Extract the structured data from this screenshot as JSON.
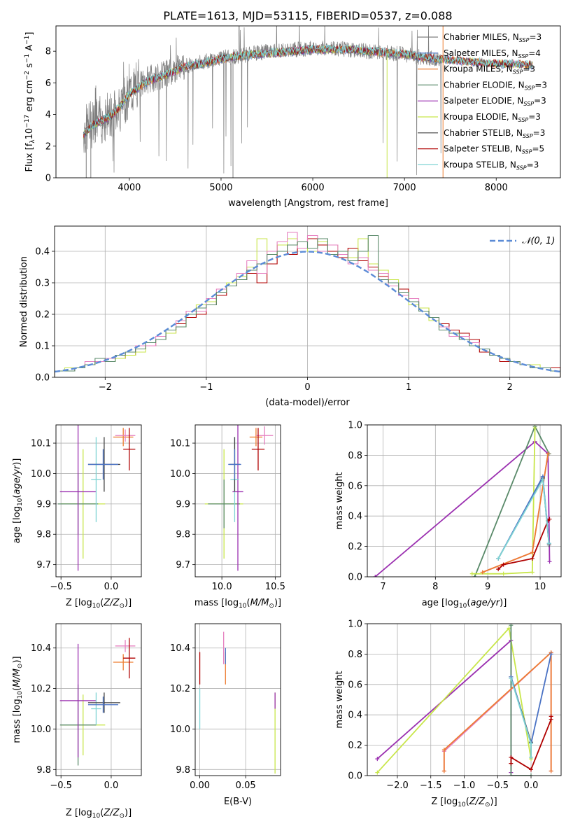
{
  "figure_title": "PLATE=1613, MJD=53115, FIBERID=0537, z=0.088",
  "model_legend": [
    {
      "label": "Chabrier MILES, N",
      "sub": "SSP",
      "suffix": "=3",
      "color": "#7f7f7f"
    },
    {
      "label": "Salpeter MILES, N",
      "sub": "SSP",
      "suffix": "=4",
      "color": "#4a72c4"
    },
    {
      "label": "Kroupa MILES, N",
      "sub": "SSP",
      "suffix": "=3",
      "color": "#ed7d31"
    },
    {
      "label": "Chabrier ELODIE, N",
      "sub": "SSP",
      "suffix": "=3",
      "color": "#5a8a6a"
    },
    {
      "label": "Salpeter ELODIE, N",
      "sub": "SSP",
      "suffix": "=3",
      "color": "#9b30b0"
    },
    {
      "label": "Kroupa ELODIE, N",
      "sub": "SSP",
      "suffix": "=3",
      "color": "#c8e64a"
    },
    {
      "label": "Chabrier STELIB, N",
      "sub": "SSP",
      "suffix": "=3",
      "color": "#404040"
    },
    {
      "label": "Salpeter STELIB, N",
      "sub": "SSP",
      "suffix": "=5",
      "color": "#b00000"
    },
    {
      "label": "Kroupa STELIB, N",
      "sub": "SSP",
      "suffix": "=3",
      "color": "#7fd4d4"
    }
  ],
  "chart_data": [
    {
      "id": "spectrum",
      "type": "line",
      "xlabel": "wavelength [Angstrom, rest frame]",
      "ylabel": "Flux [f_λ10^-17 erg cm^-2 s^-1 A^-1]",
      "xlim": [
        3200,
        8700
      ],
      "ylim": [
        0,
        9.6
      ],
      "xticks": [
        4000,
        5000,
        6000,
        7000,
        8000
      ],
      "yticks": [
        0,
        2,
        4,
        6,
        8
      ],
      "data_spectrum": {
        "color": "#7f7f7f",
        "x": [
          3500,
          3600,
          3700,
          3800,
          3900,
          4000,
          4200,
          4400,
          4600,
          4800,
          5000,
          5200,
          5400,
          5600,
          5800,
          6000,
          6200,
          6400,
          6600,
          6800,
          7000,
          7200,
          7400
        ],
        "y": [
          2.9,
          3.5,
          3.7,
          4.0,
          4.5,
          5.4,
          6.2,
          6.6,
          7.1,
          7.3,
          7.6,
          7.7,
          7.9,
          8.0,
          8.1,
          8.2,
          8.2,
          8.1,
          8.0,
          7.9,
          7.8,
          7.6,
          7.5
        ]
      },
      "model_spectrum": {
        "color": "#7fd4d4",
        "x": [
          3500,
          3600,
          3700,
          3800,
          3900,
          4000,
          4200,
          4400,
          4600,
          4800,
          5000,
          5200,
          5400,
          5600,
          5800,
          6000,
          6200,
          6400,
          6600,
          6800,
          7000,
          7200,
          7400,
          7600,
          7800,
          8000,
          8200,
          8400
        ],
        "y": [
          2.7,
          3.3,
          3.6,
          3.9,
          4.5,
          5.3,
          6.1,
          6.5,
          7.0,
          7.2,
          7.5,
          7.7,
          7.8,
          7.9,
          8.0,
          8.1,
          8.1,
          8.1,
          8.0,
          7.9,
          7.8,
          7.6,
          7.5,
          7.4,
          7.3,
          7.2,
          7.2,
          7.1
        ]
      }
    },
    {
      "id": "residuals",
      "type": "step",
      "xlabel": "(data-model)/error",
      "ylabel": "Normed distribution",
      "xlim": [
        -2.5,
        2.5
      ],
      "ylim": [
        0,
        0.48
      ],
      "xticks": [
        -2,
        -1,
        0,
        1,
        2
      ],
      "yticks": [
        0.0,
        0.1,
        0.2,
        0.3,
        0.4
      ],
      "gauss_label": "𝒩(0, 1)",
      "gauss_color": "#5b8bd6",
      "bin_edges": [
        -2.5,
        -2.4,
        -2.3,
        -2.2,
        -2.1,
        -2.0,
        -1.9,
        -1.8,
        -1.7,
        -1.6,
        -1.5,
        -1.4,
        -1.3,
        -1.2,
        -1.1,
        -1.0,
        -0.9,
        -0.8,
        -0.7,
        -0.6,
        -0.5,
        -0.4,
        -0.3,
        -0.2,
        -0.1,
        0.0,
        0.1,
        0.2,
        0.3,
        0.4,
        0.5,
        0.6,
        0.7,
        0.8,
        0.9,
        1.0,
        1.1,
        1.2,
        1.3,
        1.4,
        1.5,
        1.6,
        1.7,
        1.8,
        1.9,
        2.0,
        2.1,
        2.2,
        2.3,
        2.4,
        2.5
      ],
      "series": [
        {
          "color": "#b00000",
          "values": [
            0.02,
            0.02,
            0.03,
            0.04,
            0.05,
            0.06,
            0.06,
            0.07,
            0.09,
            0.1,
            0.12,
            0.14,
            0.17,
            0.19,
            0.2,
            0.23,
            0.26,
            0.29,
            0.31,
            0.33,
            0.3,
            0.36,
            0.42,
            0.39,
            0.43,
            0.44,
            0.42,
            0.4,
            0.38,
            0.41,
            0.37,
            0.35,
            0.32,
            0.3,
            0.28,
            0.24,
            0.22,
            0.19,
            0.17,
            0.15,
            0.14,
            0.12,
            0.08,
            0.07,
            0.05,
            0.05,
            0.04,
            0.03,
            0.03,
            0.03
          ]
        },
        {
          "color": "#c8e64a",
          "values": [
            0.02,
            0.03,
            0.03,
            0.04,
            0.05,
            0.05,
            0.06,
            0.07,
            0.08,
            0.11,
            0.12,
            0.14,
            0.16,
            0.2,
            0.23,
            0.24,
            0.27,
            0.3,
            0.32,
            0.35,
            0.44,
            0.39,
            0.42,
            0.44,
            0.41,
            0.4,
            0.43,
            0.42,
            0.4,
            0.38,
            0.44,
            0.36,
            0.34,
            0.31,
            0.27,
            0.23,
            0.22,
            0.18,
            0.16,
            0.14,
            0.12,
            0.11,
            0.09,
            0.07,
            0.06,
            0.05,
            0.04,
            0.04,
            0.03,
            0.02
          ]
        },
        {
          "color": "#e67fbf",
          "values": [
            0.02,
            0.02,
            0.03,
            0.05,
            0.05,
            0.06,
            0.07,
            0.08,
            0.1,
            0.1,
            0.13,
            0.15,
            0.18,
            0.21,
            0.21,
            0.25,
            0.28,
            0.29,
            0.33,
            0.37,
            0.33,
            0.4,
            0.43,
            0.46,
            0.41,
            0.45,
            0.4,
            0.42,
            0.39,
            0.36,
            0.38,
            0.34,
            0.33,
            0.29,
            0.26,
            0.25,
            0.21,
            0.19,
            0.16,
            0.13,
            0.13,
            0.11,
            0.09,
            0.07,
            0.06,
            0.05,
            0.04,
            0.03,
            0.03,
            0.02
          ]
        },
        {
          "color": "#5a8a6a",
          "values": [
            0.02,
            0.02,
            0.03,
            0.04,
            0.06,
            0.05,
            0.07,
            0.08,
            0.09,
            0.11,
            0.12,
            0.15,
            0.16,
            0.2,
            0.22,
            0.23,
            0.27,
            0.29,
            0.31,
            0.34,
            0.36,
            0.39,
            0.4,
            0.42,
            0.43,
            0.41,
            0.44,
            0.39,
            0.4,
            0.37,
            0.4,
            0.45,
            0.31,
            0.3,
            0.27,
            0.24,
            0.21,
            0.19,
            0.15,
            0.14,
            0.12,
            0.1,
            0.09,
            0.07,
            0.06,
            0.05,
            0.04,
            0.03,
            0.03,
            0.02
          ]
        }
      ]
    },
    {
      "id": "age-vs-z",
      "type": "errorbar",
      "xlabel": "Z [log10(Z/Z⊙)]",
      "ylabel": "age  [log10(age/yr)]",
      "xlim": [
        -0.55,
        0.3
      ],
      "ylim": [
        9.66,
        10.16
      ],
      "xticks": [
        -0.5,
        0.0
      ],
      "yticks": [
        9.7,
        9.8,
        9.9,
        10.0,
        10.1
      ],
      "points": [
        {
          "x": -0.28,
          "xerr": 0.22,
          "y": 9.9,
          "yerr": 0.18,
          "color": "#c8e64a"
        },
        {
          "x": -0.33,
          "xerr": 0.2,
          "y": 9.9,
          "yerr": 0.1,
          "color": "#5a8a6a"
        },
        {
          "x": -0.33,
          "xerr": 0.18,
          "y": 9.94,
          "yerr": 0.26,
          "color": "#9b30b0"
        },
        {
          "x": -0.15,
          "xerr": 0.05,
          "y": 9.98,
          "yerr": 0.14,
          "color": "#7fd4d4"
        },
        {
          "x": -0.07,
          "xerr": 0.16,
          "y": 10.03,
          "yerr": 0.09,
          "color": "#404040"
        },
        {
          "x": -0.08,
          "xerr": 0.15,
          "y": 10.03,
          "yerr": 0.05,
          "color": "#4a72c4"
        },
        {
          "x": 0.12,
          "xerr": 0.1,
          "y": 10.12,
          "yerr": 0.03,
          "color": "#ed7d31"
        },
        {
          "x": 0.14,
          "xerr": 0.1,
          "y": 10.125,
          "yerr": 0.02,
          "color": "#e67fbf"
        },
        {
          "x": 0.18,
          "xerr": 0.06,
          "y": 10.08,
          "yerr": 0.07,
          "color": "#b00000"
        }
      ]
    },
    {
      "id": "age-vs-mass",
      "type": "errorbar",
      "xlabel": "mass [log10(M/M⊙)]",
      "ylabel": "",
      "xlim": [
        9.75,
        10.55
      ],
      "ylim": [
        9.66,
        10.16
      ],
      "xticks": [
        10.0,
        10.5
      ],
      "yticks": [
        9.7,
        9.8,
        9.9,
        10.0,
        10.1
      ],
      "points": [
        {
          "x": 10.02,
          "xerr": 0.18,
          "y": 9.9,
          "yerr": 0.18,
          "color": "#c8e64a"
        },
        {
          "x": 10.02,
          "xerr": 0.15,
          "y": 9.9,
          "yerr": 0.08,
          "color": "#5a8a6a"
        },
        {
          "x": 10.15,
          "xerr": 0.05,
          "y": 9.94,
          "yerr": 0.26,
          "color": "#9b30b0"
        },
        {
          "x": 10.12,
          "xerr": 0.04,
          "y": 9.98,
          "yerr": 0.14,
          "color": "#7fd4d4"
        },
        {
          "x": 10.12,
          "xerr": 0.05,
          "y": 10.03,
          "yerr": 0.09,
          "color": "#404040"
        },
        {
          "x": 10.12,
          "xerr": 0.06,
          "y": 10.03,
          "yerr": 0.05,
          "color": "#4a72c4"
        },
        {
          "x": 10.32,
          "xerr": 0.06,
          "y": 10.12,
          "yerr": 0.03,
          "color": "#ed7d31"
        },
        {
          "x": 10.4,
          "xerr": 0.08,
          "y": 10.125,
          "yerr": 0.03,
          "color": "#e67fbf"
        },
        {
          "x": 10.34,
          "xerr": 0.06,
          "y": 10.08,
          "yerr": 0.07,
          "color": "#b00000"
        }
      ]
    },
    {
      "id": "massweight-vs-age",
      "type": "line",
      "xlabel": "age  [log10(age/yr)]",
      "ylabel": "mass weight",
      "xlim": [
        6.7,
        10.4
      ],
      "ylim": [
        0.0,
        1.0
      ],
      "xticks": [
        7,
        8,
        9,
        10
      ],
      "yticks": [
        0.0,
        0.2,
        0.4,
        0.6,
        0.8,
        1.0
      ],
      "series": [
        {
          "color": "#9b30b0",
          "x": [
            6.85,
            9.9,
            10.15,
            10.18
          ],
          "y": [
            0.0,
            0.89,
            0.81,
            0.1
          ]
        },
        {
          "color": "#5a8a6a",
          "x": [
            8.75,
            9.9,
            10.17
          ],
          "y": [
            0.0,
            0.99,
            0.81
          ]
        },
        {
          "color": "#c8e64a",
          "x": [
            8.7,
            9.3,
            9.85,
            9.9
          ],
          "y": [
            0.02,
            0.02,
            0.03,
            0.98
          ]
        },
        {
          "color": "#e67fbf",
          "x": [
            8.9,
            9.85,
            10.15
          ],
          "y": [
            0.03,
            0.16,
            0.81
          ]
        },
        {
          "color": "#ed7d31",
          "x": [
            8.9,
            9.85,
            10.15
          ],
          "y": [
            0.03,
            0.16,
            0.81
          ]
        },
        {
          "color": "#b00000",
          "x": [
            9.2,
            9.3,
            9.85,
            10.15,
            10.18
          ],
          "y": [
            0.05,
            0.08,
            0.12,
            0.37,
            0.38
          ]
        },
        {
          "color": "#404040",
          "x": [
            9.2,
            10.05,
            10.17
          ],
          "y": [
            0.12,
            0.65,
            0.21
          ]
        },
        {
          "color": "#4a72c4",
          "x": [
            9.2,
            10.05,
            10.17
          ],
          "y": [
            0.12,
            0.66,
            0.22
          ]
        },
        {
          "color": "#7fd4d4",
          "x": [
            9.2,
            10.05,
            10.17
          ],
          "y": [
            0.12,
            0.64,
            0.22
          ]
        }
      ]
    },
    {
      "id": "mass-vs-z",
      "type": "errorbar",
      "xlabel": "Z [log10(Z/Z⊙)]",
      "ylabel": "mass [log10(M/M⊙)]",
      "xlim": [
        -0.55,
        0.3
      ],
      "ylim": [
        9.77,
        10.52
      ],
      "xticks": [
        -0.5,
        0.0
      ],
      "yticks": [
        9.8,
        10.0,
        10.2,
        10.4
      ],
      "points": [
        {
          "x": -0.28,
          "xerr": 0.22,
          "y": 10.02,
          "yerr": 0.15,
          "color": "#c8e64a"
        },
        {
          "x": -0.33,
          "xerr": 0.18,
          "y": 10.02,
          "yerr": 0.2,
          "color": "#5a8a6a"
        },
        {
          "x": -0.33,
          "xerr": 0.18,
          "y": 10.14,
          "yerr": 0.28,
          "color": "#9b30b0"
        },
        {
          "x": -0.15,
          "xerr": 0.05,
          "y": 10.1,
          "yerr": 0.08,
          "color": "#7fd4d4"
        },
        {
          "x": -0.07,
          "xerr": 0.16,
          "y": 10.13,
          "yerr": 0.05,
          "color": "#404040"
        },
        {
          "x": -0.08,
          "xerr": 0.15,
          "y": 10.12,
          "yerr": 0.04,
          "color": "#4a72c4"
        },
        {
          "x": 0.12,
          "xerr": 0.1,
          "y": 10.33,
          "yerr": 0.04,
          "color": "#ed7d31"
        },
        {
          "x": 0.14,
          "xerr": 0.1,
          "y": 10.41,
          "yerr": 0.03,
          "color": "#e67fbf"
        },
        {
          "x": 0.18,
          "xerr": 0.06,
          "y": 10.35,
          "yerr": 0.1,
          "color": "#b00000"
        }
      ]
    },
    {
      "id": "mass-vs-ebv",
      "type": "errorbar",
      "xlabel": "E(B-V)",
      "ylabel": "",
      "xlim": [
        -0.005,
        0.088
      ],
      "ylim": [
        9.77,
        10.52
      ],
      "xticks": [
        0.0,
        0.05
      ],
      "yticks": [
        9.8,
        10.0,
        10.2,
        10.4
      ],
      "points": [
        {
          "x": 0.0,
          "xerr": 0,
          "y": 10.1,
          "yerr": 0.1,
          "color": "#7fd4d4"
        },
        {
          "x": 0.0,
          "xerr": 0,
          "y": 10.3,
          "yerr": 0.08,
          "color": "#b00000"
        },
        {
          "x": 0.026,
          "xerr": 0,
          "y": 10.4,
          "yerr": 0.08,
          "color": "#e67fbf"
        },
        {
          "x": 0.028,
          "xerr": 0,
          "y": 10.3,
          "yerr": 0.08,
          "color": "#ed7d31"
        },
        {
          "x": 0.028,
          "xerr": 0,
          "y": 10.36,
          "yerr": 0.04,
          "color": "#4a72c4"
        },
        {
          "x": 0.082,
          "xerr": 0,
          "y": 9.98,
          "yerr": 0.2,
          "color": "#c8e64a"
        },
        {
          "x": 0.082,
          "xerr": 0,
          "y": 10.14,
          "yerr": 0.04,
          "color": "#9b30b0"
        }
      ]
    },
    {
      "id": "massweight-vs-z",
      "type": "line",
      "xlabel": "Z [log10(Z/Z⊙)]",
      "ylabel": "mass weight",
      "xlim": [
        -2.45,
        0.45
      ],
      "ylim": [
        0.0,
        1.0
      ],
      "xticks": [
        -2.0,
        -1.5,
        -1.0,
        -0.5,
        0.0
      ],
      "yticks": [
        0.0,
        0.2,
        0.4,
        0.6,
        0.8,
        1.0
      ],
      "series": [
        {
          "color": "#9b30b0",
          "x": [
            -2.3,
            -0.3,
            -0.3
          ],
          "y": [
            0.11,
            0.89,
            0.02
          ]
        },
        {
          "color": "#c8e64a",
          "x": [
            -2.3,
            -0.33,
            0.0
          ],
          "y": [
            0.02,
            0.97,
            0.11
          ]
        },
        {
          "color": "#5a8a6a",
          "x": [
            -0.3,
            -0.3,
            0.0
          ],
          "y": [
            0.99,
            0.0,
            0.0
          ]
        },
        {
          "color": "#e67fbf",
          "x": [
            -1.3,
            -1.3,
            0.3,
            0.3
          ],
          "y": [
            0.03,
            0.16,
            0.81,
            0.03
          ]
        },
        {
          "color": "#ed7d31",
          "x": [
            -1.3,
            -1.3,
            0.3,
            0.3
          ],
          "y": [
            0.03,
            0.17,
            0.81,
            0.03
          ]
        },
        {
          "color": "#b00000",
          "x": [
            -0.3,
            -0.3,
            0.0,
            0.3,
            0.3
          ],
          "y": [
            0.08,
            0.12,
            0.04,
            0.37,
            0.39
          ]
        },
        {
          "color": "#404040",
          "x": [
            -0.3,
            0.0,
            0.0
          ],
          "y": [
            0.65,
            0.22,
            0.12
          ]
        },
        {
          "color": "#4a72c4",
          "x": [
            -0.3,
            0.0,
            0.3
          ],
          "y": [
            0.65,
            0.21,
            0.8
          ]
        },
        {
          "color": "#7fd4d4",
          "x": [
            -0.3,
            0.0,
            0.0
          ],
          "y": [
            0.64,
            0.21,
            0.12
          ]
        }
      ]
    }
  ]
}
